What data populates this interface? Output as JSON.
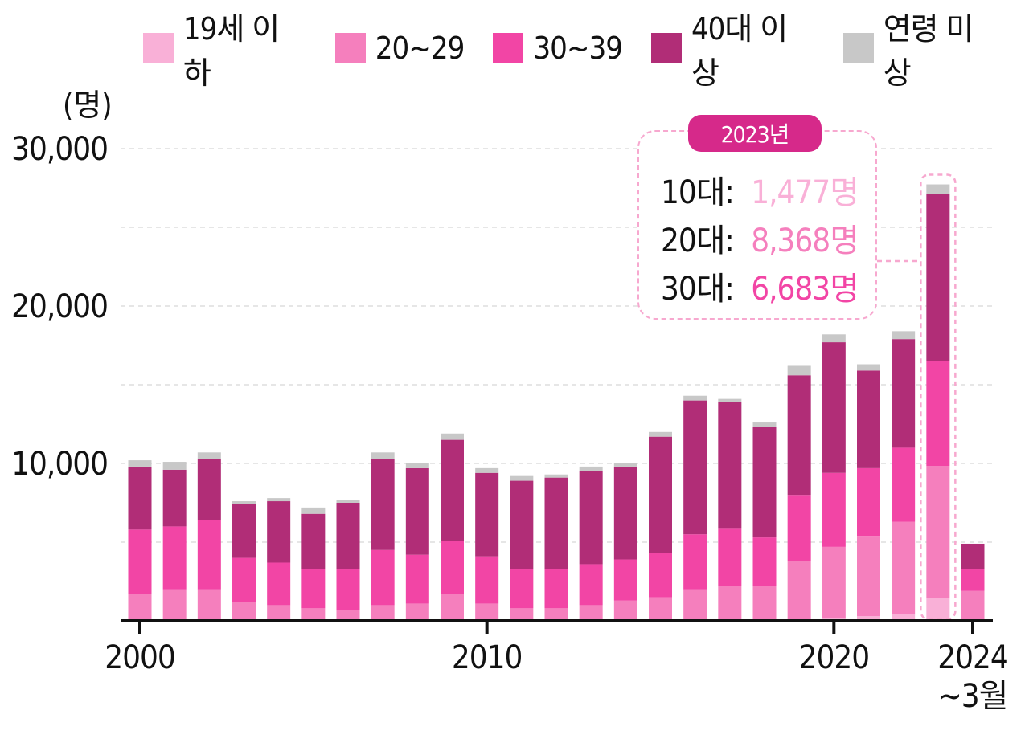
{
  "legend": [
    {
      "label": "19세 이하",
      "color": "#f9b0d7"
    },
    {
      "label": "20~29",
      "color": "#f57fbd"
    },
    {
      "label": "30~39",
      "color": "#f245a5"
    },
    {
      "label": "40대 이상",
      "color": "#b12d77"
    },
    {
      "label": "연령 미상",
      "color": "#c8c8c8"
    }
  ],
  "unit_label": "(명)",
  "callout": {
    "title": "2023년",
    "rows": [
      {
        "label": "10대:",
        "value": "1,477명",
        "color": "#f9b0d7"
      },
      {
        "label": "20대:",
        "value": "8,368명",
        "color": "#f57fbd"
      },
      {
        "label": "30대:",
        "value": "6,683명",
        "color": "#f245a5"
      }
    ]
  },
  "chart_data": {
    "type": "bar",
    "stacked": true,
    "categories": [
      "2000",
      "2001",
      "2002",
      "2003",
      "2004",
      "2005",
      "2006",
      "2007",
      "2008",
      "2009",
      "2010",
      "2011",
      "2012",
      "2013",
      "2014",
      "2015",
      "2016",
      "2017",
      "2018",
      "2019",
      "2020",
      "2021",
      "2022",
      "2023",
      "2024 ~3월"
    ],
    "x_tick_labels": [
      {
        "index": 0,
        "lines": [
          "2000"
        ]
      },
      {
        "index": 10,
        "lines": [
          "2010"
        ]
      },
      {
        "index": 20,
        "lines": [
          "2020"
        ]
      },
      {
        "index": 24,
        "lines": [
          "2024",
          "~3월"
        ]
      }
    ],
    "y_ticks": [
      10000,
      20000,
      30000
    ],
    "y_tick_labels": [
      "10,000",
      "20,000",
      "30,000"
    ],
    "ylim": [
      0,
      30000
    ],
    "grid": true,
    "legend_position": "top",
    "series": [
      {
        "name": "19세 이하",
        "color": "#f9b0d7",
        "values": [
          0,
          0,
          0,
          0,
          0,
          0,
          0,
          0,
          0,
          0,
          0,
          0,
          0,
          0,
          0,
          0,
          0,
          0,
          0,
          100,
          200,
          300,
          400,
          1477,
          0
        ]
      },
      {
        "name": "20~29",
        "color": "#f57fbd",
        "values": [
          1700,
          2000,
          2000,
          1200,
          1000,
          800,
          700,
          1000,
          1100,
          1700,
          1100,
          800,
          800,
          1000,
          1300,
          1500,
          2000,
          2200,
          2200,
          3700,
          4500,
          5100,
          5900,
          8368,
          1900
        ]
      },
      {
        "name": "30~39",
        "color": "#f245a5",
        "values": [
          4100,
          4000,
          4400,
          2800,
          2700,
          2500,
          2600,
          3500,
          3100,
          3400,
          3000,
          2500,
          2500,
          2600,
          2600,
          2800,
          3500,
          3700,
          3100,
          4200,
          4700,
          4300,
          4700,
          6683,
          1400
        ]
      },
      {
        "name": "40대 이상",
        "color": "#b12d77",
        "values": [
          4000,
          3600,
          3900,
          3400,
          3900,
          3500,
          4200,
          5800,
          5500,
          6400,
          5300,
          5600,
          5800,
          5900,
          5900,
          7400,
          8500,
          8000,
          7000,
          7600,
          8300,
          6200,
          6900,
          10600,
          1600
        ]
      },
      {
        "name": "연령 미상",
        "color": "#c8c8c8",
        "values": [
          400,
          500,
          400,
          200,
          200,
          400,
          200,
          400,
          300,
          400,
          300,
          300,
          200,
          300,
          200,
          300,
          300,
          200,
          300,
          600,
          500,
          400,
          500,
          600,
          0
        ]
      }
    ],
    "highlight_index": 23
  }
}
